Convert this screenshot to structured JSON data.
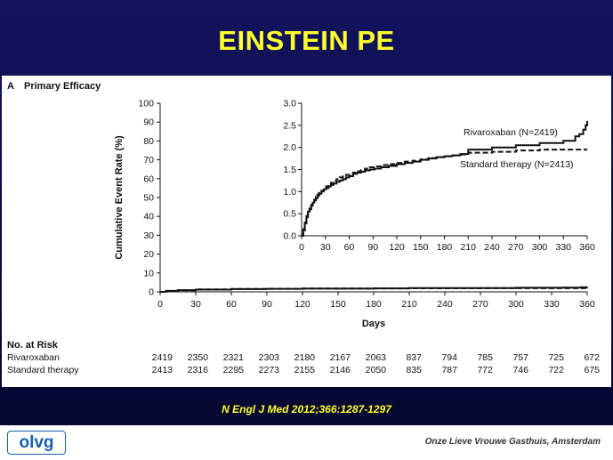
{
  "slide_title": "EINSTEIN PE",
  "citation": "N Engl J Med 2012;366:1287-1297",
  "footer": {
    "logo_text": "olvg",
    "institution": "Onze Lieve Vrouwe Gasthuis, Amsterdam"
  },
  "colors": {
    "title": "#ffff2a",
    "background": "#0b0b45",
    "rivaroxaban": "#111111",
    "standard": "#111111"
  },
  "chart_data": [
    {
      "type": "line",
      "panel_label": "A",
      "title": "Primary Efficacy",
      "xlabel": "Days",
      "ylabel": "Cumulative Event Rate (%)",
      "xlim": [
        0,
        360
      ],
      "ylim": [
        0,
        100
      ],
      "x_ticks": [
        0,
        30,
        60,
        90,
        120,
        150,
        180,
        210,
        240,
        270,
        300,
        330,
        360
      ],
      "y_ticks": [
        0,
        10,
        20,
        30,
        40,
        50,
        60,
        70,
        80,
        90,
        100
      ],
      "series": [
        {
          "name": "Rivaroxaban",
          "style": "solid",
          "x": [
            0,
            5,
            15,
            30,
            60,
            90,
            120,
            180,
            210,
            270,
            300,
            340,
            355,
            360
          ],
          "y": [
            0,
            0.5,
            0.9,
            1.2,
            1.45,
            1.6,
            1.7,
            1.85,
            2.0,
            2.05,
            2.15,
            2.25,
            2.4,
            2.6
          ]
        },
        {
          "name": "Standard therapy",
          "style": "dashed",
          "x": [
            0,
            5,
            15,
            30,
            60,
            90,
            120,
            180,
            210,
            270,
            300,
            360
          ],
          "y": [
            0,
            0.45,
            0.85,
            1.25,
            1.5,
            1.6,
            1.75,
            1.85,
            1.9,
            1.95,
            1.95,
            1.95
          ]
        }
      ],
      "risk_table": {
        "header": "No. at Risk",
        "rows": [
          {
            "label": "Rivaroxaban",
            "values": [
              "2419",
              "2350",
              "2321",
              "2303",
              "2180",
              "2167",
              "2063",
              "837",
              "794",
              "785",
              "757",
              "725",
              "672"
            ]
          },
          {
            "label": "Standard therapy",
            "values": [
              "2413",
              "2316",
              "2295",
              "2273",
              "2155",
              "2146",
              "2050",
              "835",
              "787",
              "772",
              "746",
              "722",
              "675"
            ]
          }
        ]
      }
    },
    {
      "type": "line",
      "role": "inset",
      "xlim": [
        0,
        360
      ],
      "ylim": [
        0,
        3.0
      ],
      "x_ticks": [
        0,
        30,
        60,
        90,
        120,
        150,
        180,
        210,
        240,
        270,
        300,
        330,
        360
      ],
      "y_ticks": [
        "0.0",
        "0.5",
        "1.0",
        "1.5",
        "2.0",
        "2.5",
        "3.0"
      ],
      "series": [
        {
          "name": "Rivaroxaban",
          "legend": "Rivaroxaban (N=2419)",
          "style": "solid",
          "x": [
            0,
            2,
            4,
            6,
            8,
            10,
            12,
            14,
            16,
            18,
            20,
            22,
            25,
            28,
            31,
            34,
            37,
            40,
            44,
            48,
            52,
            56,
            60,
            65,
            70,
            75,
            80,
            86,
            92,
            100,
            110,
            120,
            130,
            140,
            150,
            160,
            170,
            180,
            190,
            200,
            210,
            240,
            270,
            300,
            330,
            345,
            350,
            355,
            358,
            360
          ],
          "y": [
            0,
            0.15,
            0.3,
            0.45,
            0.55,
            0.62,
            0.7,
            0.75,
            0.8,
            0.85,
            0.9,
            0.95,
            1.0,
            1.05,
            1.08,
            1.12,
            1.15,
            1.18,
            1.22,
            1.25,
            1.28,
            1.32,
            1.35,
            1.4,
            1.43,
            1.45,
            1.48,
            1.5,
            1.52,
            1.55,
            1.58,
            1.62,
            1.65,
            1.68,
            1.72,
            1.75,
            1.78,
            1.8,
            1.82,
            1.85,
            1.95,
            2.0,
            2.05,
            2.1,
            2.15,
            2.25,
            2.3,
            2.4,
            2.5,
            2.6
          ]
        },
        {
          "name": "Standard therapy",
          "legend": "Standard therapy (N=2413)",
          "style": "dashed",
          "x": [
            0,
            2,
            4,
            6,
            8,
            10,
            12,
            14,
            16,
            18,
            20,
            22,
            25,
            28,
            31,
            34,
            37,
            40,
            44,
            48,
            52,
            56,
            60,
            65,
            70,
            75,
            80,
            86,
            92,
            100,
            110,
            120,
            130,
            140,
            150,
            160,
            170,
            180,
            190,
            200,
            210,
            240,
            270,
            300,
            330,
            360
          ],
          "y": [
            0,
            0.12,
            0.28,
            0.4,
            0.5,
            0.6,
            0.68,
            0.75,
            0.82,
            0.88,
            0.93,
            0.97,
            1.02,
            1.08,
            1.12,
            1.17,
            1.2,
            1.24,
            1.28,
            1.32,
            1.35,
            1.38,
            1.4,
            1.43,
            1.46,
            1.49,
            1.52,
            1.55,
            1.57,
            1.6,
            1.62,
            1.65,
            1.68,
            1.7,
            1.73,
            1.76,
            1.78,
            1.8,
            1.82,
            1.84,
            1.88,
            1.9,
            1.93,
            1.95,
            1.95,
            1.95
          ]
        }
      ]
    }
  ]
}
